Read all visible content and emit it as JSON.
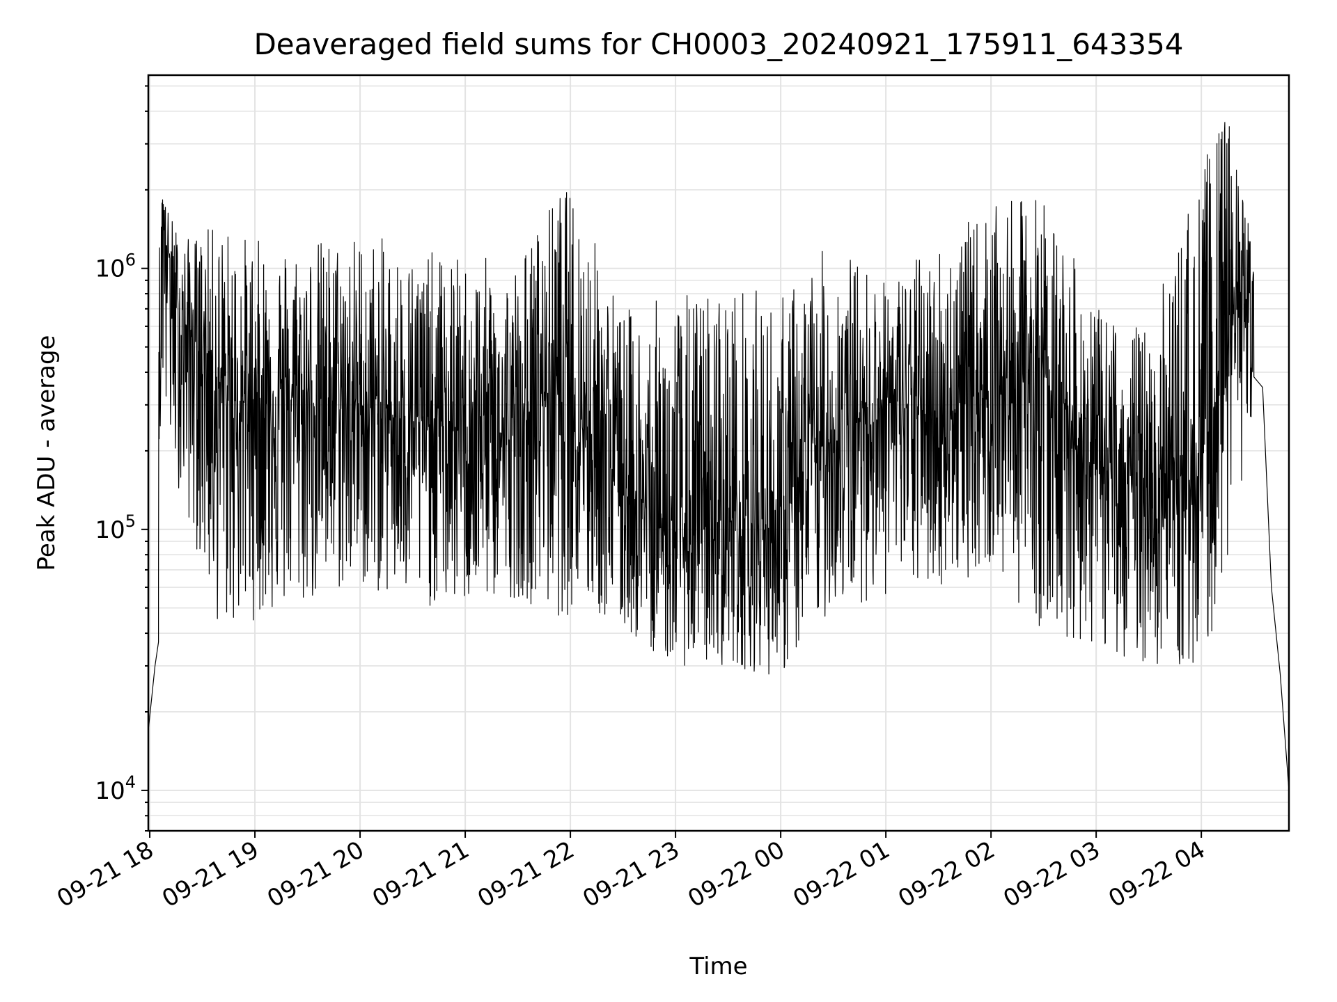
{
  "chart_data": {
    "type": "line",
    "title": "Deaveraged field sums for CH0003_20240921_175911_643354",
    "xlabel": "Time",
    "ylabel": "Peak ADU - average",
    "y_scale": "log",
    "ylim": [
      7000,
      5500000
    ],
    "xlim": [
      "2024-09-21 17:59:11",
      "2024-09-22 04:50:00"
    ],
    "grid": true,
    "x_ticks": [
      "2024-09-21 18:00",
      "2024-09-21 19:00",
      "2024-09-21 20:00",
      "2024-09-21 21:00",
      "2024-09-21 22:00",
      "2024-09-21 23:00",
      "2024-09-22 00:00",
      "2024-09-22 01:00",
      "2024-09-22 02:00",
      "2024-09-22 03:00",
      "2024-09-22 04:00"
    ],
    "x_tick_labels": [
      "09-21 18",
      "09-21 19",
      "09-21 20",
      "09-21 21",
      "09-21 22",
      "09-21 23",
      "09-22 00",
      "09-22 01",
      "09-22 02",
      "09-22 03",
      "09-22 04"
    ],
    "y_ticks": [
      10000,
      100000,
      1000000
    ],
    "y_tick_labels": [
      {
        "base": "10",
        "exp": "4"
      },
      {
        "base": "10",
        "exp": "5"
      },
      {
        "base": "10",
        "exp": "6"
      }
    ],
    "line_color": "#000000",
    "series": [
      {
        "x": [
          "2024-09-21 17:59:11",
          "2024-09-21 18:03",
          "2024-09-21 18:05",
          "2024-09-21 18:06",
          "2024-09-21 18:07",
          "2024-09-21 18:15",
          "2024-09-21 18:30",
          "2024-09-21 18:45",
          "2024-09-21 19:00",
          "2024-09-21 19:30",
          "2024-09-21 20:00",
          "2024-09-21 20:30",
          "2024-09-21 21:00",
          "2024-09-21 21:30",
          "2024-09-21 21:50",
          "2024-09-21 22:00",
          "2024-09-21 22:30",
          "2024-09-21 23:00",
          "2024-09-21 23:30",
          "2024-09-22 00:00",
          "2024-09-22 00:20",
          "2024-09-22 00:40",
          "2024-09-22 01:00",
          "2024-09-22 01:30",
          "2024-09-22 02:00",
          "2024-09-22 02:30",
          "2024-09-22 03:00",
          "2024-09-22 03:30",
          "2024-09-22 04:00",
          "2024-09-22 04:15",
          "2024-09-22 04:30",
          "2024-09-22 04:35",
          "2024-09-22 04:40",
          "2024-09-22 04:45",
          "2024-09-22 04:50"
        ],
        "y": [
          17000,
          30000,
          37000,
          220000,
          1900000,
          650000,
          500000,
          300000,
          320000,
          320000,
          300000,
          260000,
          240000,
          220000,
          400000,
          350000,
          150000,
          90000,
          110000,
          100000,
          200000,
          250000,
          320000,
          260000,
          360000,
          420000,
          170000,
          150000,
          160000,
          600000,
          850000,
          350000,
          60000,
          28000,
          10000
        ]
      }
    ],
    "envelope_high": {
      "x": [
        "2024-09-21 18:05",
        "2024-09-21 18:10",
        "2024-09-21 18:20",
        "2024-09-21 18:40",
        "2024-09-21 19:00",
        "2024-09-21 19:30",
        "2024-09-21 20:00",
        "2024-09-21 20:30",
        "2024-09-21 21:00",
        "2024-09-21 21:30",
        "2024-09-21 21:55",
        "2024-09-21 22:05",
        "2024-09-21 22:30",
        "2024-09-21 23:00",
        "2024-09-21 23:30",
        "2024-09-22 00:00",
        "2024-09-22 00:30",
        "2024-09-22 01:00",
        "2024-09-22 01:30",
        "2024-09-22 02:00",
        "2024-09-22 02:30",
        "2024-09-22 03:00",
        "2024-09-22 03:30",
        "2024-09-22 04:00",
        "2024-09-22 04:15",
        "2024-09-22 04:30"
      ],
      "y": [
        2100000,
        1700000,
        1300000,
        1500000,
        1300000,
        1300000,
        1400000,
        1200000,
        1100000,
        1100000,
        2100000,
        1900000,
        700000,
        800000,
        900000,
        800000,
        1300000,
        900000,
        1300000,
        1700000,
        2000000,
        700000,
        600000,
        2600000,
        4000000,
        1200000
      ]
    },
    "envelope_low": {
      "x": [
        "2024-09-21 18:05",
        "2024-09-21 18:10",
        "2024-09-21 18:20",
        "2024-09-21 18:40",
        "2024-09-21 19:00",
        "2024-09-21 19:30",
        "2024-09-21 20:00",
        "2024-09-21 20:30",
        "2024-09-21 21:00",
        "2024-09-21 21:30",
        "2024-09-21 21:55",
        "2024-09-21 22:05",
        "2024-09-21 22:30",
        "2024-09-21 23:00",
        "2024-09-21 23:30",
        "2024-09-22 00:00",
        "2024-09-22 00:30",
        "2024-09-22 01:00",
        "2024-09-22 01:30",
        "2024-09-22 02:00",
        "2024-09-22 02:30",
        "2024-09-22 03:00",
        "2024-09-22 03:30",
        "2024-09-22 04:00",
        "2024-09-22 04:15",
        "2024-09-22 04:30"
      ],
      "y": [
        500000,
        200000,
        120000,
        40000,
        45000,
        50000,
        60000,
        50000,
        50000,
        55000,
        45000,
        50000,
        40000,
        30000,
        30000,
        27000,
        50000,
        55000,
        60000,
        70000,
        40000,
        35000,
        30000,
        28000,
        70000,
        300000
      ]
    }
  }
}
